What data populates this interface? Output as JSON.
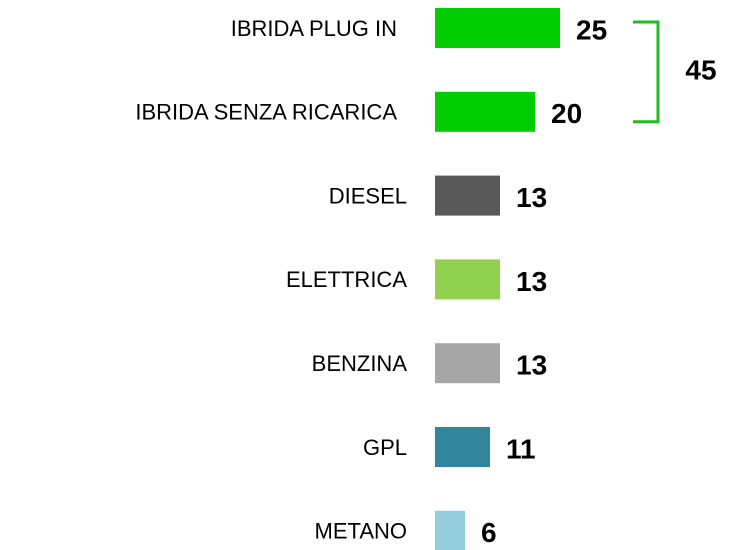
{
  "chart_data": {
    "type": "bar",
    "orientation": "horizontal",
    "categories": [
      "IBRIDA PLUG IN",
      "IBRIDA SENZA RICARICA",
      "DIESEL",
      "ELETTRICA",
      "BENZINA",
      "GPL",
      "METANO"
    ],
    "values": [
      25,
      20,
      13,
      13,
      13,
      11,
      6
    ],
    "colors": [
      "#00cc00",
      "#00cc00",
      "#595959",
      "#92d050",
      "#a6a6a6",
      "#31859c",
      "#93cddd"
    ],
    "annotation": {
      "value": 45,
      "color": "#22bb22"
    }
  }
}
